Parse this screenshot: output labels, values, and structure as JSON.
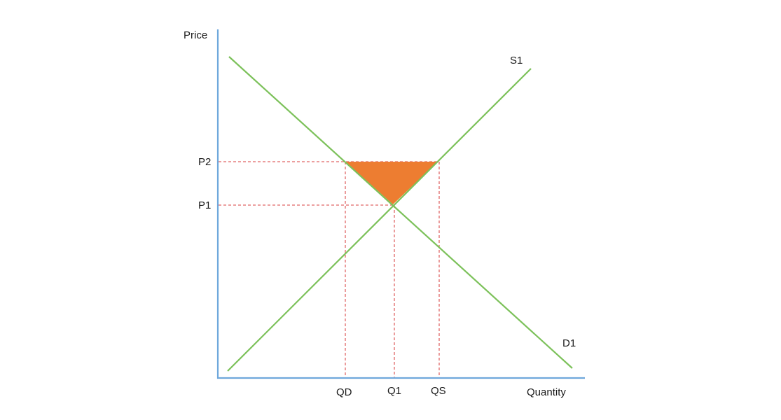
{
  "axes": {
    "y_label": "Price",
    "x_label": "Quantity"
  },
  "curves": {
    "supply": "S1",
    "demand": "D1"
  },
  "price_levels": {
    "upper": "P2",
    "equilibrium": "P1"
  },
  "quantity_levels": {
    "demanded": "QD",
    "equilibrium": "Q1",
    "supplied": "QS"
  },
  "colors": {
    "axis": "#6fa8dc",
    "curve": "#7cc15a",
    "guide": "#e06666",
    "shaded_area": "#ed7d31"
  }
}
